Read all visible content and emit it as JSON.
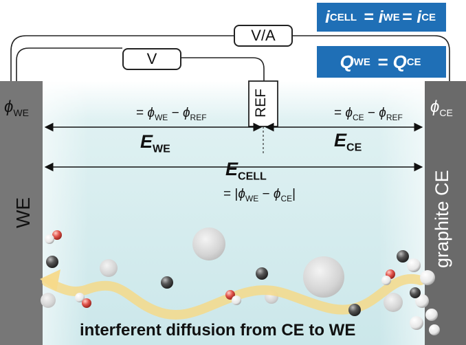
{
  "equations": {
    "current": {
      "i1": "i",
      "s1": "CELL",
      "i2": "i",
      "s2": "WE",
      "i3": "i",
      "s3": "CE"
    },
    "charge": {
      "q1": "Q",
      "s1": "WE",
      "q2": "Q",
      "s2": "CE"
    }
  },
  "meters": {
    "outer": "V/A",
    "inner": "V"
  },
  "electrodes": {
    "working": {
      "phi": "ϕ",
      "sub": "WE",
      "name": "WE"
    },
    "counter": {
      "phi": "ϕ",
      "sub": "CE",
      "name": "graphite CE"
    },
    "reference": {
      "name": "REF"
    }
  },
  "potentials": {
    "we_formula": {
      "pre": "= ",
      "a": "ϕ",
      "as": "WE",
      "minus": " − ",
      "b": "ϕ",
      "bs": "REF"
    },
    "ce_formula": {
      "pre": "= ",
      "a": "ϕ",
      "as": "CE",
      "minus": " − ",
      "b": "ϕ",
      "bs": "REF"
    },
    "cell_formula": {
      "pre": "= |",
      "a": "ϕ",
      "as": "WE",
      "minus": " − ",
      "b": "ϕ",
      "bs": "CE",
      "post": "|"
    },
    "E_we": {
      "E": "E",
      "sub": "WE"
    },
    "E_ce": {
      "E": "E",
      "sub": "CE"
    },
    "E_cell": {
      "E": "E",
      "sub": "CELL"
    }
  },
  "caption": "interferent diffusion from CE to WE",
  "colors": {
    "blue_box": "#1f6fb6",
    "electrode_we": "#777777",
    "electrode_ce": "#6a6a6a",
    "electrolyte": "#d7eef0",
    "arrow": "#f5d98a",
    "oxygen": "#e0524a"
  }
}
